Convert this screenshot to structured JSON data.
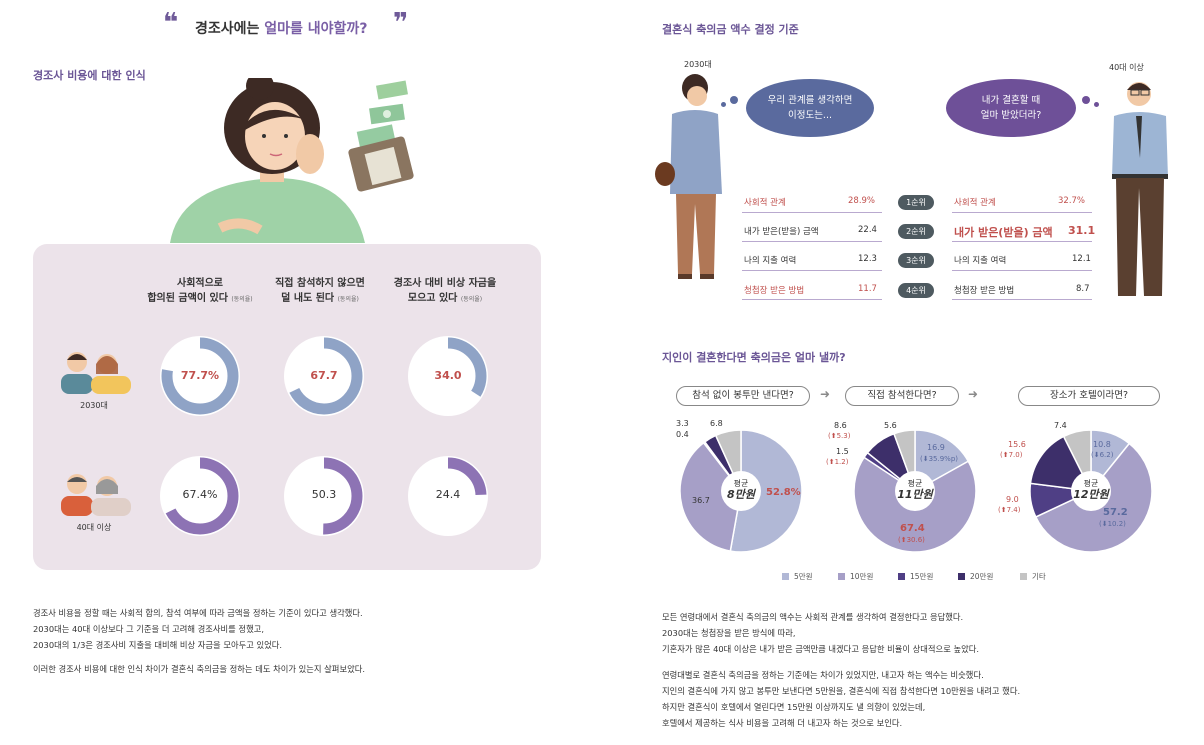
{
  "left": {
    "title_pre": "경조사에는 ",
    "title_hl": "얼마를 내야할까?",
    "section_title": "경조사 비용에 대한 인식",
    "columns": [
      {
        "line1": "사회적으로",
        "line2": "합의된 금액이 있다",
        "note": "(동의율)"
      },
      {
        "line1": "직접 참석하지 않으면",
        "line2": "덜 내도 된다",
        "note": "(동의율)"
      },
      {
        "line1": "경조사 대비 비상 자금을",
        "line2": "모으고 있다",
        "note": "(동의율)"
      }
    ],
    "groups": [
      "2030대",
      "40대 이상"
    ],
    "body": [
      "경조사 비용을 정할 때는 사회적 합의, 참석 여부에 따라 금액을 정하는 기준이 있다고 생각했다.",
      "2030대는 40대 이상보다 그 기준을 더 고려해 경조사비를 정했고,",
      "2030대의 1/3은 경조사비 지출을 대비해 비상 자금을 모아두고 있었다.",
      "이러한 경조사 비용에 대한 인식 차이가 결혼식 축의금을 정하는 데도 차이가 있는지 살펴보았다."
    ]
  },
  "right": {
    "section1_title": "결혼식 축의금 액수 결정 기준",
    "young_label": "2030대",
    "old_label": "40대 이상",
    "bubble_young": [
      "우리 관계를 생각하면",
      "이정도는..."
    ],
    "bubble_old": [
      "내가 결혼할 때",
      "얼마 받았더라?"
    ],
    "ranks": [
      "1순위",
      "2순위",
      "3순위",
      "4순위"
    ],
    "young_items": [
      {
        "label": "사회적 관계",
        "value": "28.9%",
        "highlight": true
      },
      {
        "label": "내가 받은(받을) 금액",
        "value": "22.4",
        "highlight": false
      },
      {
        "label": "나의 지출 여력",
        "value": "12.3",
        "highlight": false
      },
      {
        "label": "청첩장 받은 방법",
        "value": "11.7",
        "highlight": true
      }
    ],
    "old_items": [
      {
        "label": "사회적 관계",
        "value": "32.7%",
        "highlight": true
      },
      {
        "label": "내가 받은(받을) 금액",
        "value": "31.1",
        "highlight": true
      },
      {
        "label": "나의 지출 여력",
        "value": "12.1",
        "highlight": false
      },
      {
        "label": "청첩장 받은 방법",
        "value": "8.7",
        "highlight": false
      }
    ],
    "section2_title": "지인이 결혼한다면 축의금은 얼마 낼까?",
    "questions": [
      "참석 없이 봉투만 낸다면?",
      "직접 참석한다면?",
      "장소가 호텔이라면?"
    ],
    "avg_label": "평균",
    "avgs": [
      "8만원",
      "11만원",
      "12만원"
    ],
    "body": [
      "모든 연령대에서 결혼식 축의금의 액수는 사회적 관계를 생각하여 결정한다고 응답했다.",
      "2030대는 청첩장을 받은 방식에 따라,",
      "기혼자가 많은 40대 이상은 내가 받은 금액만큼 내겠다고 응답한 비율이 상대적으로 높았다.",
      "연령대별로 결혼식 축의금을 정하는 기준에는 차이가 있었지만, 내고자 하는 액수는 비슷했다.",
      "지인의 결혼식에 가지 않고 봉투만 보낸다면 5만원을, 결혼식에 직접 참석한다면 10만원을 내려고 했다.",
      "하지만 결혼식이 호텔에서 열린다면 15만원 이상까지도 낼 의향이 있었는데,",
      "호텔에서 제공하는 식사 비용을 고려해 더 내고자 하는 것으로 보인다."
    ]
  },
  "colors": {
    "blue": "#8fa3c6",
    "purple": "#8d73b4",
    "red": "#c0504d",
    "accent": "#6b5696"
  },
  "chart_data": [
    {
      "type": "pie",
      "title": "경조사 비용에 대한 인식",
      "note": "donut gauges (동의율, %)",
      "series": [
        {
          "name": "2030대",
          "values": [
            77.7,
            67.7,
            34.0
          ],
          "labels": [
            "77.7%",
            "67.7",
            "34.0"
          ]
        },
        {
          "name": "40대 이상",
          "values": [
            67.4,
            50.3,
            24.4
          ],
          "labels": [
            "67.4%",
            "50.3",
            "24.4"
          ]
        }
      ]
    },
    {
      "type": "pie",
      "legend": [
        "5만원",
        "10만원",
        "15만원",
        "20만원",
        "기타"
      ],
      "legend_colors": [
        "#b1b8d6",
        "#a69fc7",
        "#4f3f85",
        "#3d2f6a",
        "#c4c4c4"
      ],
      "pies": [
        {
          "title": "참석 없이 봉투만 낸다면?",
          "values": [
            52.8,
            36.7,
            0.4,
            3.3,
            6.8
          ],
          "labels": [
            "52.8%",
            "36.7",
            "0.4",
            "3.3",
            "6.8"
          ],
          "changes": [
            "",
            "",
            "",
            "",
            ""
          ]
        },
        {
          "title": "직접 참석한다면?",
          "values": [
            16.9,
            67.4,
            1.5,
            8.6,
            5.6
          ],
          "labels": [
            "16.9",
            "67.4",
            "1.5",
            "8.6",
            "5.6"
          ],
          "changes": [
            "(⬇35.9%p)",
            "(⬆30.6)",
            "(⬆1.2)",
            "(⬆5.3)",
            ""
          ]
        },
        {
          "title": "장소가 호텔이라면?",
          "values": [
            10.8,
            57.2,
            9.0,
            15.6,
            7.4
          ],
          "labels": [
            "10.8",
            "57.2",
            "9.0",
            "15.6",
            "7.4"
          ],
          "changes": [
            "(⬇6.2)",
            "(⬇10.2)",
            "(⬆7.4)",
            "(⬆7.0)",
            ""
          ]
        }
      ]
    }
  ]
}
